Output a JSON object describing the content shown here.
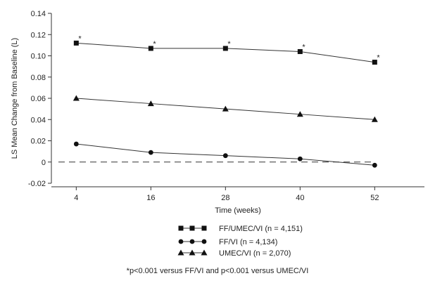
{
  "chart_data": {
    "type": "line",
    "title": "",
    "xlabel": "Time (weeks)",
    "ylabel": "LS Mean Change from Baseline (L)",
    "categories": [
      "4",
      "16",
      "28",
      "40",
      "52"
    ],
    "x": [
      4,
      16,
      28,
      40,
      52
    ],
    "xlim": [
      0,
      60
    ],
    "ylim": [
      -0.02,
      0.14
    ],
    "yticks": [
      -0.02,
      0,
      0.02,
      0.04,
      0.06,
      0.08,
      0.1,
      0.12,
      0.14
    ],
    "ytick_labels": [
      "-0.02",
      "0",
      "0.02",
      "0.04",
      "0.06",
      "0.08",
      "0.10",
      "0.12",
      "0.14"
    ],
    "reference_line": {
      "y": 0,
      "style": "dashed"
    },
    "grid": false,
    "legend_position": "bottom",
    "series": [
      {
        "name": "FF/UMEC/VI (n = 4,151)",
        "marker": "square",
        "values": [
          0.112,
          0.107,
          0.107,
          0.104,
          0.094
        ],
        "significance": [
          "*",
          "*",
          "*",
          "*",
          "*"
        ]
      },
      {
        "name": "FF/VI (n = 4,134)",
        "marker": "circle",
        "values": [
          0.017,
          0.009,
          0.006,
          0.003,
          -0.003
        ]
      },
      {
        "name": "UMEC/VI (n = 2,070)",
        "marker": "triangle",
        "values": [
          0.06,
          0.055,
          0.05,
          0.045,
          0.04
        ]
      }
    ],
    "footnote": "*p<0.001 versus FF/VI and p<0.001 versus UMEC/VI"
  }
}
